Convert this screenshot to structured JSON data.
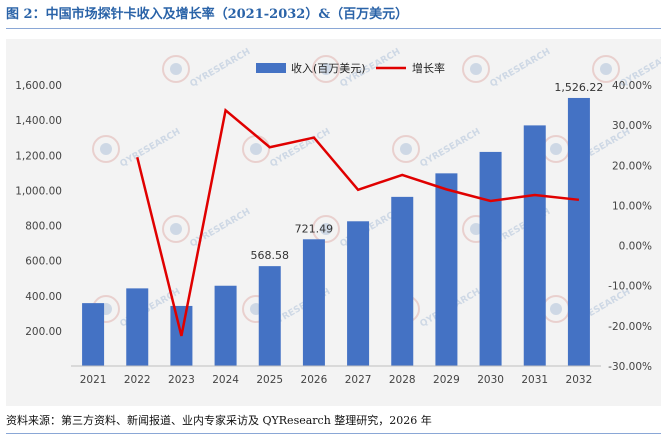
{
  "page": {
    "title": "图 2：中国市场探针卡收入及增长率（2021-2032）&（百万美元）",
    "source": "资料来源：第三方资料、新闻报道、业内专家采访及 QYResearch 整理研究，2026 年",
    "watermark_text": "QYRESEARCH"
  },
  "colors": {
    "title": "#2a63a8",
    "bar": "#4472c4",
    "line": "#e00000",
    "panel": "#f3f3f3"
  },
  "chart_data": {
    "type": "bar",
    "categories": [
      "2021",
      "2022",
      "2023",
      "2024",
      "2025",
      "2026",
      "2027",
      "2028",
      "2029",
      "2030",
      "2031",
      "2032"
    ],
    "series": [
      {
        "name": "收入(百万美元)",
        "type": "bar",
        "axis": "left",
        "values": [
          358,
          442,
          342,
          457,
          568.58,
          721.49,
          824,
          963,
          1097,
          1219,
          1370,
          1526.22
        ]
      },
      {
        "name": "增长率",
        "type": "line",
        "axis": "right",
        "values": [
          null,
          22.0,
          -22.5,
          33.7,
          24.5,
          26.9,
          13.9,
          17.6,
          14.0,
          11.1,
          12.6,
          11.4
        ]
      }
    ],
    "left_axis": {
      "ylim": [
        0,
        1600
      ],
      "ticks": [
        200,
        400,
        600,
        800,
        1000,
        1200,
        1400,
        1600
      ],
      "tick_labels": [
        "200.00",
        "400.00",
        "600.00",
        "800.00",
        "1,000.00",
        "1,200.00",
        "1,400.00",
        "1,600.00"
      ]
    },
    "right_axis": {
      "ylim": [
        -30,
        40
      ],
      "ticks": [
        -30,
        -20,
        -10,
        0,
        10,
        20,
        30,
        40
      ],
      "tick_labels": [
        "-30.00%",
        "-20.00%",
        "-10.00%",
        "0.00%",
        "10.00%",
        "20.00%",
        "30.00%",
        "40.00%"
      ]
    },
    "data_labels": [
      {
        "index": 4,
        "text": "568.58"
      },
      {
        "index": 5,
        "text": "721.49"
      },
      {
        "index": 11,
        "text": "1,526.22"
      }
    ],
    "legend": {
      "position": "top-center",
      "entries": [
        "收入(百万美元)",
        "增长率"
      ]
    },
    "grid": false
  }
}
